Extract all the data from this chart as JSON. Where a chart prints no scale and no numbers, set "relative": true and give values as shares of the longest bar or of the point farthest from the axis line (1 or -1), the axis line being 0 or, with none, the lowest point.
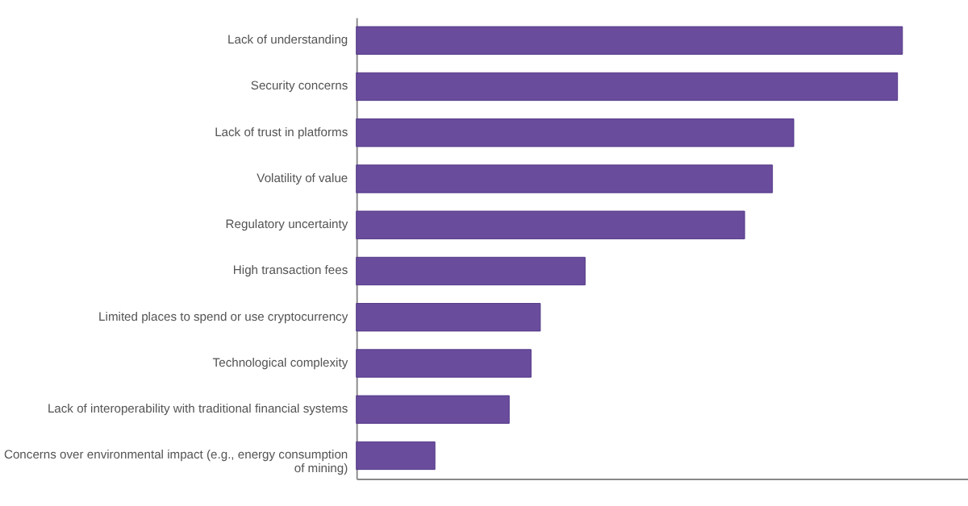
{
  "chart_data": {
    "type": "bar",
    "orientation": "horizontal",
    "relative": true,
    "color": "#6a4c9c",
    "grid": false,
    "categories": [
      "Lack of understanding",
      "Security concerns",
      "Lack of trust in platforms",
      "Volatility of value",
      "Regulatory uncertainty",
      "High transaction fees",
      "Limited places to spend or use cryptocurrency",
      "Technological complexity",
      "Lack of interoperability with traditional financial systems",
      "Concerns over environmental impact (e.g., energy consumption of mining)"
    ],
    "values": [
      1,
      0.991,
      0.801,
      0.762,
      0.711,
      0.419,
      0.337,
      0.32,
      0.28,
      0.144
    ]
  }
}
